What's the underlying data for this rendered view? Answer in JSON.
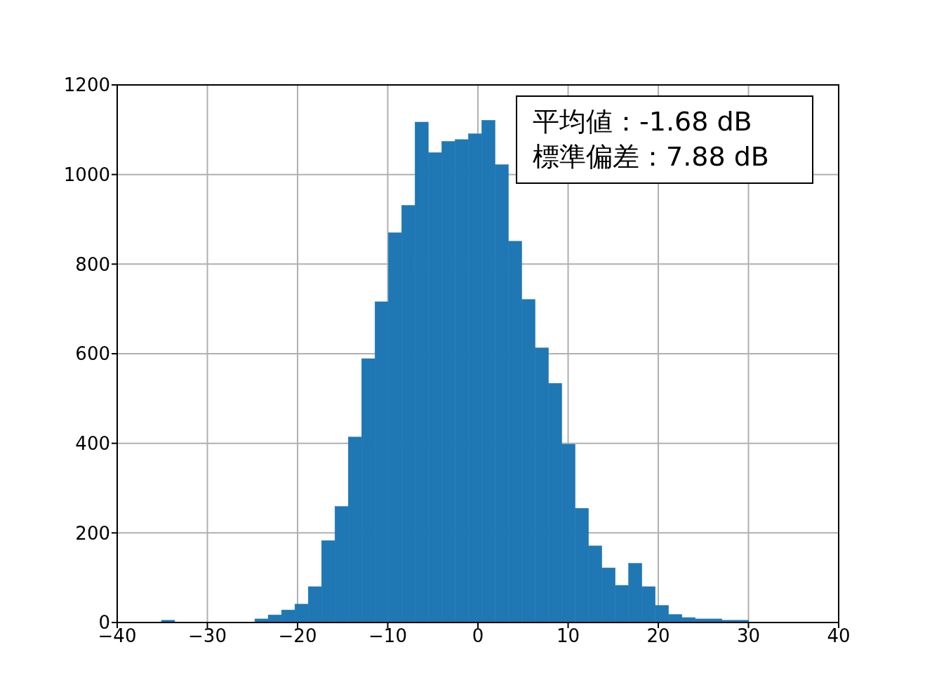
{
  "chart_data": {
    "type": "histogram",
    "color": "#1f77b4",
    "bins": [
      -35.1,
      -33.62,
      -32.14,
      -30.66,
      -29.18,
      -27.7,
      -26.22,
      -24.74,
      -23.26,
      -21.78,
      -20.3,
      -18.82,
      -17.34,
      -15.86,
      -14.38,
      -12.9,
      -11.42,
      -9.94,
      -8.46,
      -6.98,
      -5.5,
      -4.02,
      -2.54,
      -1.06,
      0.42,
      1.9,
      3.38,
      4.86,
      6.34,
      7.82,
      9.3,
      10.78,
      12.26,
      13.74,
      15.22,
      16.7,
      18.18,
      19.66,
      21.14,
      22.62,
      24.1,
      25.58,
      27.06,
      28.54,
      30.02
    ],
    "values": [
      5,
      0,
      0,
      0,
      0,
      0,
      0,
      8,
      17,
      28,
      41,
      80,
      183,
      259,
      414,
      589,
      716,
      870,
      931,
      1117,
      1049,
      1074,
      1078,
      1091,
      1121,
      1022,
      851,
      721,
      613,
      534,
      398,
      255,
      171,
      122,
      83,
      132,
      80,
      38,
      18,
      11,
      8,
      8,
      5,
      5
    ],
    "xlim": [
      -40,
      40
    ],
    "xticks": [
      -40,
      -30,
      -20,
      -10,
      0,
      10,
      20,
      30,
      40
    ],
    "ylim": [
      0,
      1200
    ],
    "yticks": [
      0,
      200,
      400,
      600,
      800,
      1000,
      1200
    ],
    "grid": true,
    "annotations": [
      "平均値：-1.68 dB",
      "標準偏差：7.88 dB"
    ]
  }
}
